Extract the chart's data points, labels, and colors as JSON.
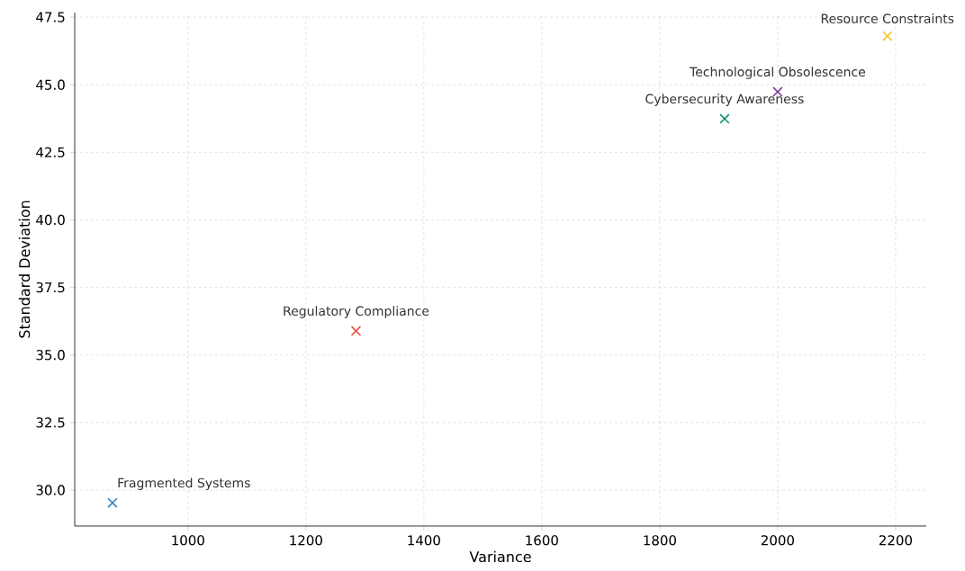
{
  "chart_data": {
    "type": "scatter",
    "xlabel": "Variance",
    "ylabel": "Standard Deviation",
    "x": [
      872,
      1285,
      1910,
      2000,
      2186
    ],
    "values": [
      29.53,
      35.89,
      43.74,
      44.74,
      46.8
    ],
    "colors": [
      "#2e86c1",
      "#e74c3c",
      "#138d75",
      "#7d3c98",
      "#f4c430"
    ],
    "marker": "cross",
    "grid": true,
    "xlim": [
      808,
      2252
    ],
    "ylim": [
      28.67,
      47.67
    ],
    "xticks": [
      1000,
      1200,
      1400,
      1600,
      1800,
      2000,
      2200
    ],
    "yticks": [
      {
        "value": 30,
        "label": "30.0"
      },
      {
        "value": 32.5,
        "label": "32.5"
      },
      {
        "value": 35,
        "label": "35.0"
      },
      {
        "value": 37.5,
        "label": "37.5"
      },
      {
        "value": 40,
        "label": "40.0"
      },
      {
        "value": 42.5,
        "label": "42.5"
      },
      {
        "value": 45,
        "label": "45.0"
      },
      {
        "value": 47.5,
        "label": "47.5"
      }
    ],
    "annotations": [
      {
        "text": "Fragmented Systems",
        "x": 872,
        "y": 29.53
      },
      {
        "text": "Regulatory Compliance",
        "x": 1285,
        "y": 35.89
      },
      {
        "text": "Cybersecurity Awareness",
        "x": 1910,
        "y": 43.74
      },
      {
        "text": "Technological Obsolescence",
        "x": 2000,
        "y": 44.74
      },
      {
        "text": "Resource Constraints",
        "x": 2186,
        "y": 46.8
      }
    ]
  }
}
